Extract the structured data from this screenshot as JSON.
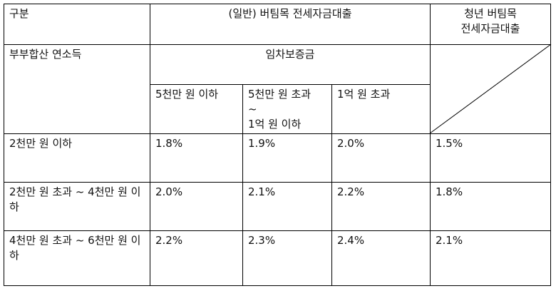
{
  "table": {
    "header": {
      "category": "구분",
      "general_loan": "(일반) 버팀목 전세자금대출",
      "youth_loan": "청년 버팀목\n전세자금대출",
      "income": "부부합산 연소득",
      "deposit": "임차보증금",
      "deposit_ranges": [
        "5천만 원 이하",
        "5천만 원 초과\n~\n1억 원 이하",
        "1억 원 초과"
      ]
    },
    "rows": [
      [
        "2천만 원 이하",
        "1.8%",
        "1.9%",
        "2.0%",
        "1.5%"
      ],
      [
        "2천만 원 초과 ~ 4천만 원 이하",
        "2.0%",
        "2.1%",
        "2.2%",
        "1.8%"
      ],
      [
        "4천만 원 초과 ~ 6천만 원 이하",
        "2.2%",
        "2.3%",
        "2.4%",
        "2.1%"
      ]
    ]
  }
}
